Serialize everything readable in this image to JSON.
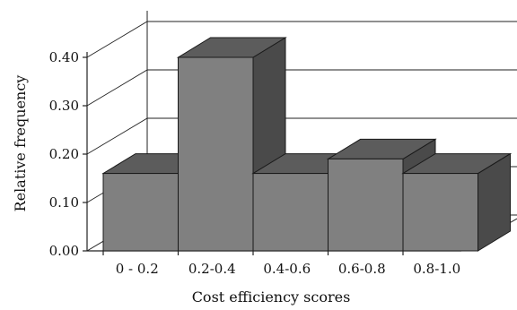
{
  "chart_data": {
    "type": "bar",
    "style": "3d",
    "categories": [
      "0 - 0.2",
      "0.2-0.4",
      "0.4-0.6",
      "0.6-0.8",
      "0.8-1.0"
    ],
    "values": [
      0.16,
      0.4,
      0.16,
      0.19,
      0.16
    ],
    "title": "",
    "xlabel": "Cost efficiency scores",
    "ylabel": "Relative frequency",
    "ylim": [
      0,
      0.4
    ],
    "yticks": [
      "0.00",
      "0.10",
      "0.20",
      "0.30",
      "0.40"
    ],
    "grid": true,
    "legend": "none",
    "colors": {
      "bar_front": "#808080",
      "bar_top": "#5c5c5c",
      "bar_side": "#4a4a4a",
      "bar_outline": "#1a1a1a"
    }
  }
}
